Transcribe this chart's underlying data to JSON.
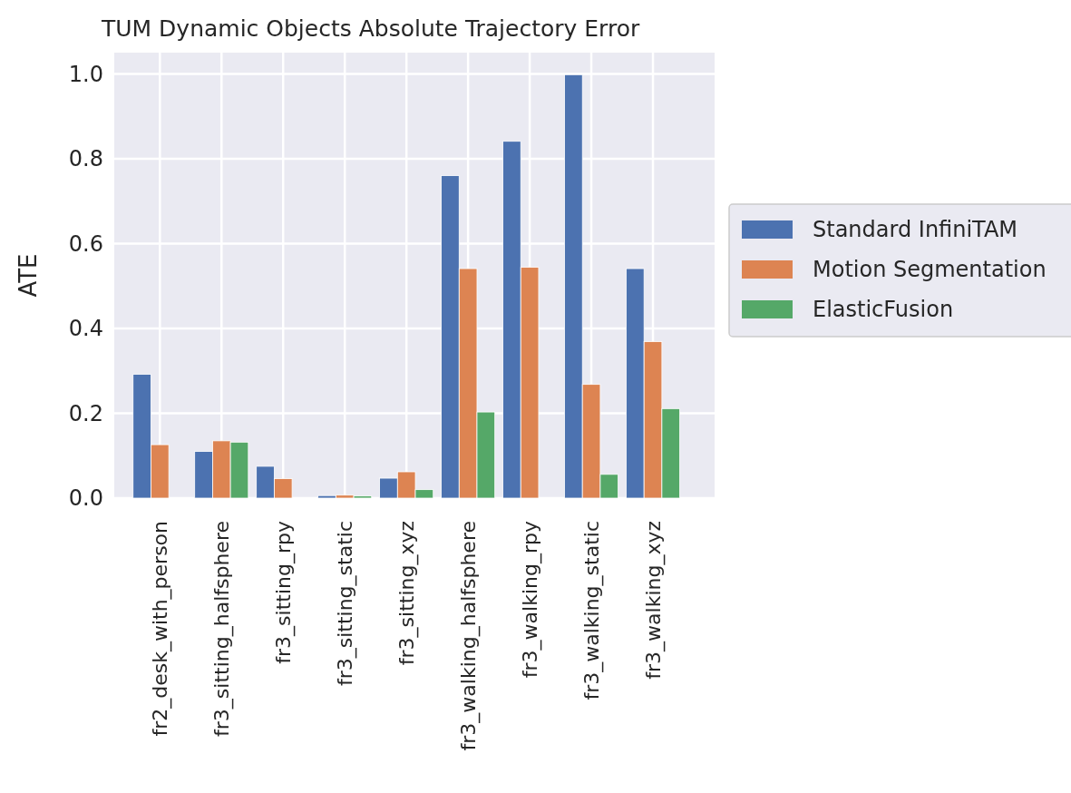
{
  "chart_data": {
    "type": "bar",
    "title": "TUM Dynamic Objects Absolute Trajectory Error",
    "ylabel": "ATE",
    "categories": [
      "fr2_desk_with_person",
      "fr3_sitting_halfsphere",
      "fr3_sitting_rpy",
      "fr3_sitting_static",
      "fr3_sitting_xyz",
      "fr3_walking_halfsphere",
      "fr3_walking_rpy",
      "fr3_walking_static",
      "fr3_walking_xyz"
    ],
    "series": [
      {
        "name": "Standard InfiniTAM",
        "color": "#4c72b0",
        "values": [
          0.292,
          0.11,
          0.075,
          0.006,
          0.047,
          0.76,
          0.841,
          0.998,
          0.541
        ]
      },
      {
        "name": "Motion Segmentation",
        "color": "#dd8452",
        "values": [
          0.126,
          0.135,
          0.046,
          0.007,
          0.062,
          0.541,
          0.544,
          0.268,
          0.369
        ]
      },
      {
        "name": "ElasticFusion",
        "color": "#55a868",
        "values": [
          null,
          0.132,
          null,
          0.005,
          0.02,
          0.203,
          null,
          0.056,
          0.211
        ]
      }
    ],
    "ylim": [
      0,
      1.05
    ],
    "yticks": [
      {
        "value": 0,
        "label": "0.0"
      },
      {
        "value": 0.2,
        "label": "0.2"
      },
      {
        "value": 0.4,
        "label": "0.4"
      },
      {
        "value": 0.6,
        "label": "0.6"
      },
      {
        "value": 0.8,
        "label": "0.8"
      },
      {
        "value": 1,
        "label": "1.0"
      }
    ],
    "grid": true,
    "legend": "right"
  }
}
